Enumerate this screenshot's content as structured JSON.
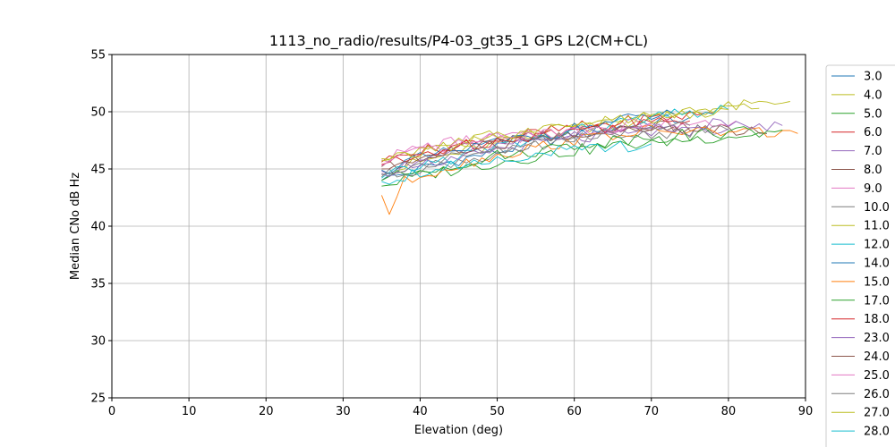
{
  "chart_data": {
    "type": "line",
    "title": "1113_no_radio/results/P4-03_gt35_1 GPS L2(CM+CL)",
    "xlabel": "Elevation (deg)",
    "ylabel": "Median CNo dB Hz",
    "xlim": [
      0,
      90
    ],
    "ylim": [
      25,
      55
    ],
    "xticks": [
      "0",
      "10",
      "20",
      "30",
      "40",
      "50",
      "60",
      "70",
      "80",
      "90"
    ],
    "yticks": [
      "25",
      "30",
      "35",
      "40",
      "45",
      "50",
      "55"
    ],
    "grid": true,
    "legend_position": "right, outside plot",
    "series": [
      {
        "name": "3.0",
        "color": "#1f77b4",
        "points": [
          [
            35,
            44.0
          ],
          [
            40,
            45.0
          ],
          [
            45,
            45.8
          ],
          [
            50,
            46.5
          ],
          [
            55,
            47.3
          ],
          [
            60,
            48.0
          ],
          [
            65,
            48.6
          ],
          [
            70,
            49.1
          ],
          [
            75,
            49.5
          ]
        ]
      },
      {
        "name": "4.0",
        "color": "#bcbd22",
        "points": [
          [
            35,
            44.6
          ],
          [
            40,
            45.6
          ],
          [
            45,
            46.4
          ],
          [
            50,
            47.1
          ],
          [
            55,
            47.8
          ],
          [
            60,
            48.4
          ],
          [
            65,
            49.0
          ],
          [
            70,
            49.5
          ],
          [
            75,
            50.0
          ],
          [
            80,
            50.4
          ],
          [
            85,
            50.7
          ],
          [
            88,
            50.9
          ]
        ]
      },
      {
        "name": "5.0",
        "color": "#2ca02c",
        "points": [
          [
            35,
            43.5
          ],
          [
            40,
            44.4
          ],
          [
            45,
            45.0
          ],
          [
            50,
            45.6
          ],
          [
            55,
            46.1
          ],
          [
            60,
            46.6
          ],
          [
            65,
            47.0
          ],
          [
            70,
            47.3
          ],
          [
            75,
            47.6
          ],
          [
            80,
            47.9
          ],
          [
            85,
            48.1
          ]
        ]
      },
      {
        "name": "6.0",
        "color": "#d62728",
        "points": [
          [
            35,
            45.6
          ],
          [
            40,
            46.5
          ],
          [
            45,
            47.1
          ],
          [
            50,
            47.6
          ],
          [
            55,
            48.1
          ],
          [
            60,
            48.6
          ],
          [
            65,
            49.0
          ],
          [
            70,
            49.4
          ],
          [
            75,
            49.7
          ],
          [
            78,
            49.9
          ]
        ]
      },
      {
        "name": "7.0",
        "color": "#9467bd",
        "points": [
          [
            35,
            44.8
          ],
          [
            40,
            45.6
          ],
          [
            45,
            46.2
          ],
          [
            50,
            46.7
          ],
          [
            55,
            47.2
          ],
          [
            60,
            47.6
          ],
          [
            65,
            47.9
          ],
          [
            70,
            48.2
          ],
          [
            75,
            48.4
          ],
          [
            80,
            48.5
          ]
        ]
      },
      {
        "name": "8.0",
        "color": "#8c564b",
        "points": [
          [
            35,
            45.2
          ],
          [
            40,
            46.1
          ],
          [
            45,
            46.8
          ],
          [
            50,
            47.3
          ],
          [
            55,
            47.8
          ],
          [
            60,
            48.2
          ],
          [
            65,
            48.5
          ],
          [
            70,
            48.7
          ],
          [
            75,
            48.6
          ],
          [
            80,
            48.3
          ],
          [
            85,
            48.1
          ]
        ]
      },
      {
        "name": "9.0",
        "color": "#e377c2",
        "points": [
          [
            35,
            45.8
          ],
          [
            40,
            46.9
          ],
          [
            45,
            47.4
          ],
          [
            50,
            47.7
          ],
          [
            55,
            48.0
          ],
          [
            60,
            48.3
          ],
          [
            65,
            48.6
          ],
          [
            70,
            48.8
          ],
          [
            75,
            49.0
          ],
          [
            81,
            49.2
          ]
        ]
      },
      {
        "name": "10.0",
        "color": "#7f7f7f",
        "points": [
          [
            35,
            44.3
          ],
          [
            40,
            45.1
          ],
          [
            45,
            45.7
          ],
          [
            50,
            46.3
          ],
          [
            55,
            46.9
          ],
          [
            60,
            47.4
          ],
          [
            65,
            47.8
          ],
          [
            70,
            48.1
          ],
          [
            75,
            48.3
          ],
          [
            80,
            48.4
          ]
        ]
      },
      {
        "name": "11.0",
        "color": "#bcbd22",
        "points": [
          [
            35,
            45.9
          ],
          [
            40,
            46.8
          ],
          [
            45,
            47.4
          ],
          [
            50,
            47.9
          ],
          [
            55,
            48.4
          ],
          [
            60,
            48.8
          ],
          [
            65,
            49.2
          ],
          [
            70,
            49.5
          ],
          [
            75,
            49.8
          ],
          [
            80,
            50.1
          ],
          [
            84,
            50.3
          ]
        ]
      },
      {
        "name": "12.0",
        "color": "#17becf",
        "points": [
          [
            35,
            44.2
          ],
          [
            40,
            45.3
          ],
          [
            45,
            46.1
          ],
          [
            50,
            46.9
          ],
          [
            55,
            47.6
          ],
          [
            60,
            48.3
          ],
          [
            65,
            48.9
          ],
          [
            70,
            49.4
          ],
          [
            75,
            49.9
          ],
          [
            80,
            50.2
          ]
        ]
      },
      {
        "name": "14.0",
        "color": "#1f77b4",
        "points": [
          [
            35,
            44.9
          ],
          [
            40,
            45.9
          ],
          [
            45,
            46.6
          ],
          [
            50,
            47.3
          ],
          [
            55,
            47.9
          ],
          [
            60,
            48.5
          ],
          [
            65,
            49.1
          ],
          [
            70,
            49.6
          ],
          [
            73,
            49.8
          ]
        ]
      },
      {
        "name": "15.0",
        "color": "#ff7f0e",
        "points": [
          [
            35,
            42.7
          ],
          [
            36,
            41.3
          ],
          [
            38,
            43.8
          ],
          [
            40,
            44.5
          ],
          [
            45,
            45.4
          ],
          [
            50,
            46.2
          ],
          [
            55,
            46.9
          ],
          [
            60,
            47.5
          ],
          [
            65,
            48.0
          ],
          [
            70,
            48.3
          ],
          [
            75,
            48.3
          ],
          [
            80,
            48.2
          ],
          [
            85,
            48.2
          ],
          [
            89,
            48.1
          ]
        ]
      },
      {
        "name": "17.0",
        "color": "#2ca02c",
        "points": [
          [
            35,
            44.0
          ],
          [
            40,
            44.9
          ],
          [
            45,
            45.5
          ],
          [
            50,
            46.1
          ],
          [
            55,
            46.6
          ],
          [
            60,
            47.1
          ],
          [
            65,
            47.5
          ],
          [
            70,
            47.8
          ],
          [
            75,
            48.0
          ],
          [
            80,
            48.2
          ],
          [
            87,
            48.4
          ]
        ]
      },
      {
        "name": "18.0",
        "color": "#d62728",
        "points": [
          [
            35,
            45.4
          ],
          [
            40,
            46.3
          ],
          [
            45,
            47.0
          ],
          [
            50,
            47.5
          ],
          [
            55,
            48.0
          ],
          [
            60,
            48.4
          ],
          [
            65,
            48.7
          ],
          [
            70,
            49.0
          ],
          [
            75,
            49.2
          ]
        ]
      },
      {
        "name": "23.0",
        "color": "#9467bd",
        "points": [
          [
            35,
            44.6
          ],
          [
            40,
            45.5
          ],
          [
            45,
            46.2
          ],
          [
            50,
            46.8
          ],
          [
            55,
            47.4
          ],
          [
            60,
            47.9
          ],
          [
            65,
            48.3
          ],
          [
            70,
            48.6
          ],
          [
            75,
            48.8
          ],
          [
            80,
            48.9
          ],
          [
            87,
            48.8
          ]
        ]
      },
      {
        "name": "24.0",
        "color": "#8c564b",
        "points": [
          [
            35,
            45.0
          ],
          [
            40,
            45.9
          ],
          [
            45,
            46.6
          ],
          [
            50,
            47.1
          ],
          [
            55,
            47.6
          ],
          [
            60,
            48.0
          ],
          [
            65,
            48.3
          ],
          [
            70,
            48.5
          ],
          [
            75,
            48.6
          ]
        ]
      },
      {
        "name": "25.0",
        "color": "#e377c2",
        "points": [
          [
            35,
            45.3
          ],
          [
            40,
            46.4
          ],
          [
            45,
            47.1
          ],
          [
            50,
            47.6
          ],
          [
            55,
            48.0
          ],
          [
            60,
            48.4
          ],
          [
            65,
            48.7
          ],
          [
            70,
            49.0
          ]
        ]
      },
      {
        "name": "26.0",
        "color": "#7f7f7f",
        "points": [
          [
            35,
            44.5
          ],
          [
            40,
            45.4
          ],
          [
            45,
            46.1
          ],
          [
            50,
            46.7
          ],
          [
            55,
            47.2
          ],
          [
            60,
            47.7
          ],
          [
            65,
            48.1
          ],
          [
            70,
            48.5
          ],
          [
            75,
            48.8
          ]
        ]
      },
      {
        "name": "27.0",
        "color": "#bcbd22",
        "points": [
          [
            35,
            45.7
          ],
          [
            40,
            46.5
          ],
          [
            45,
            47.2
          ],
          [
            50,
            47.7
          ],
          [
            55,
            48.2
          ],
          [
            60,
            48.7
          ],
          [
            65,
            49.1
          ],
          [
            70,
            49.5
          ],
          [
            75,
            49.9
          ],
          [
            80,
            50.2
          ]
        ]
      },
      {
        "name": "28.0",
        "color": "#17becf",
        "points": [
          [
            35,
            43.9
          ],
          [
            40,
            44.8
          ],
          [
            45,
            45.4
          ],
          [
            50,
            45.9
          ],
          [
            55,
            46.3
          ],
          [
            60,
            46.6
          ],
          [
            65,
            46.9
          ],
          [
            70,
            47.2
          ]
        ]
      }
    ]
  }
}
